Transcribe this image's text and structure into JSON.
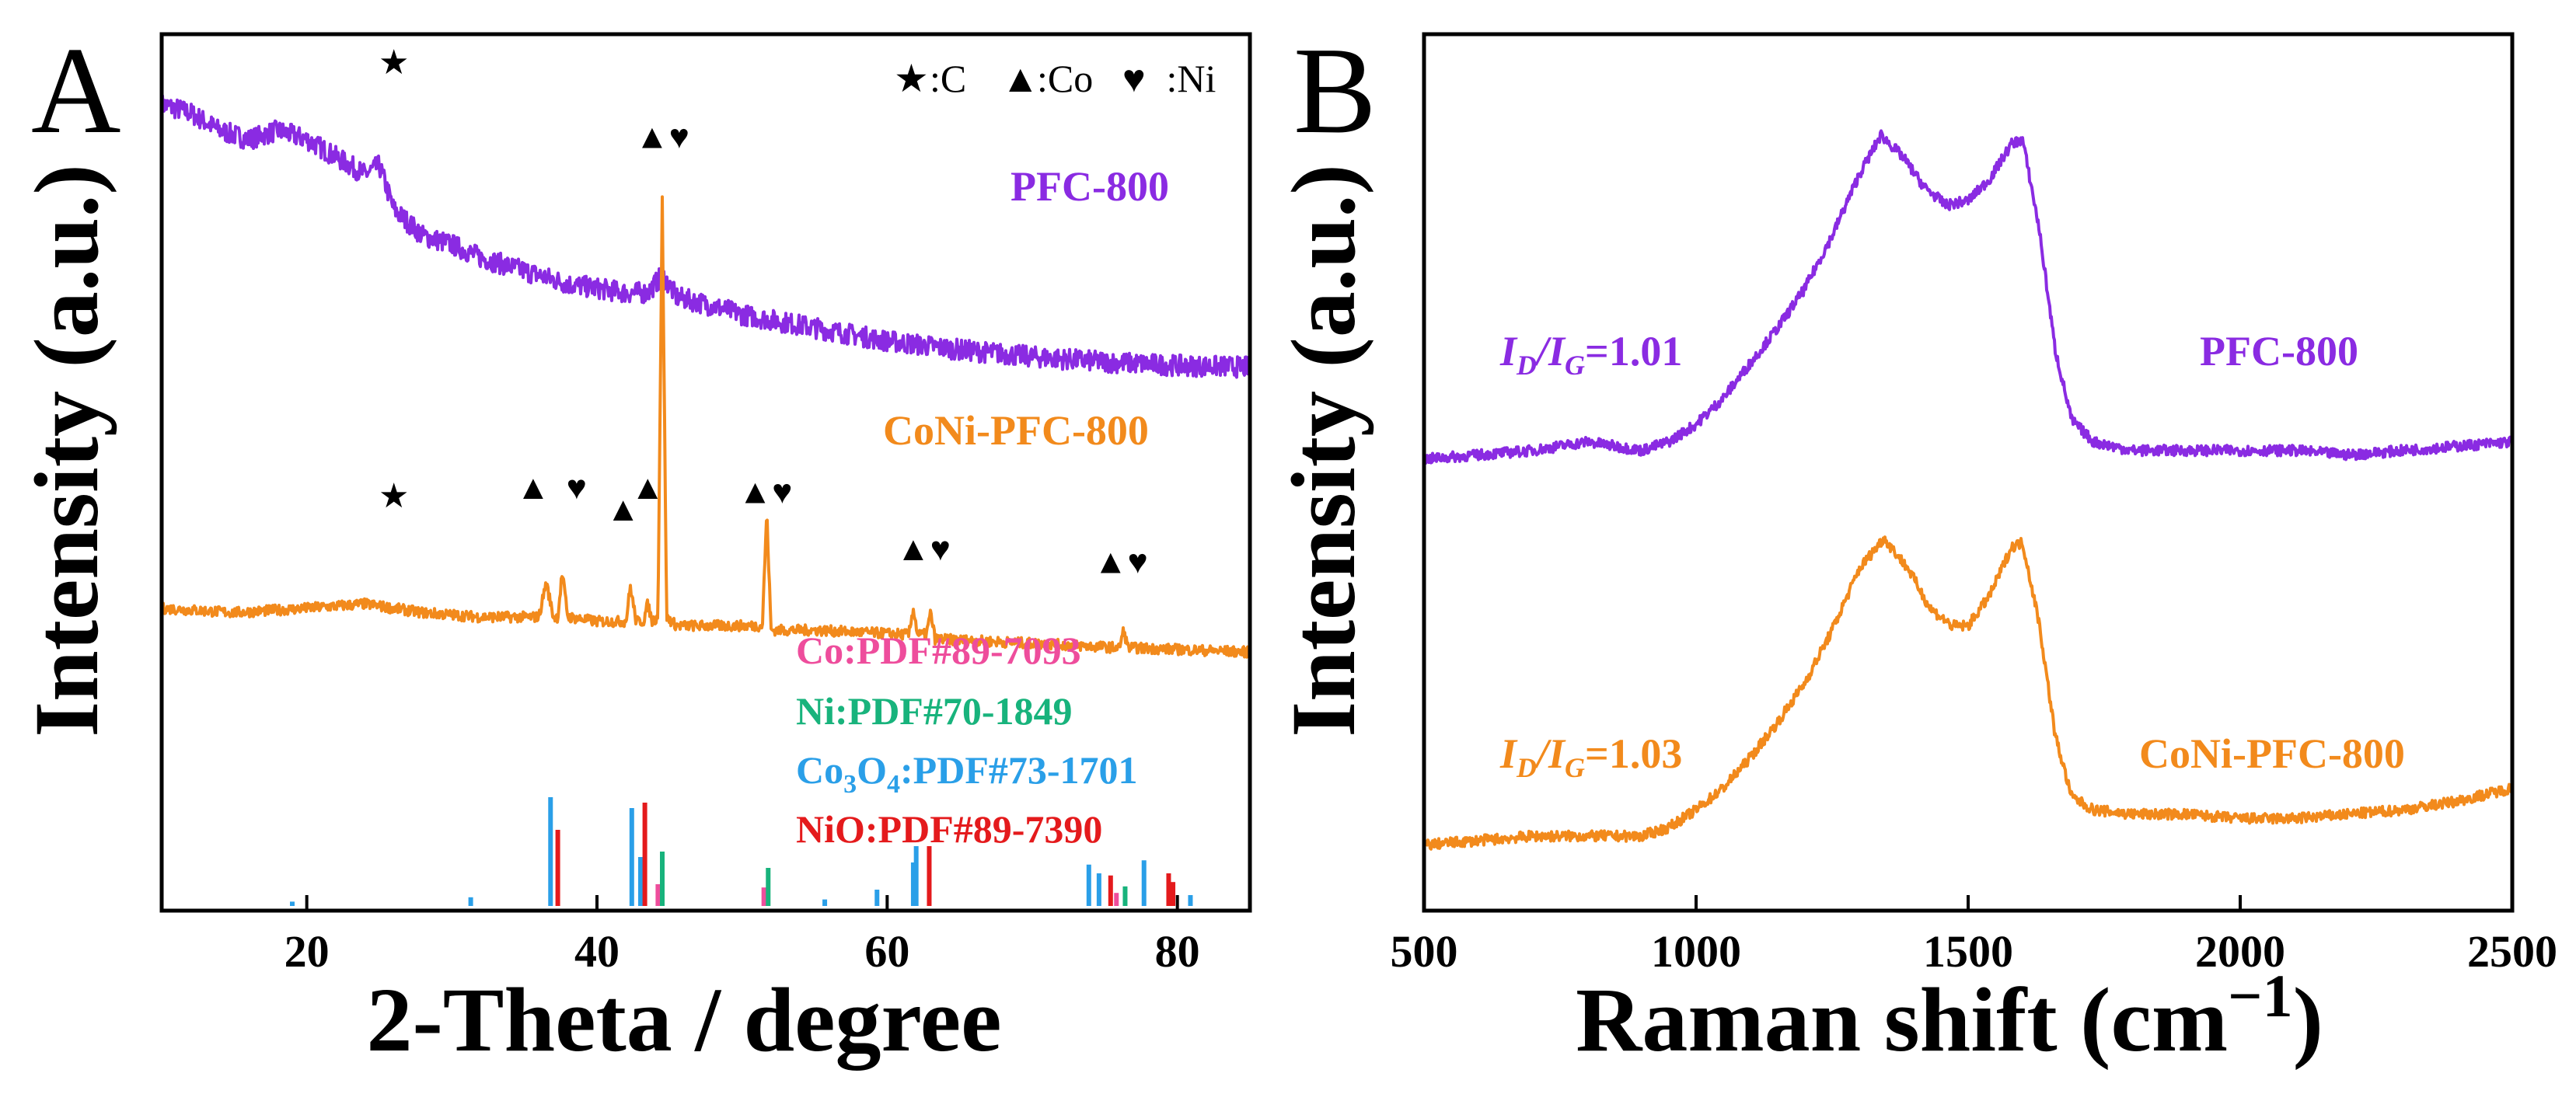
{
  "chart_data": [
    {
      "panel_label": "A",
      "type": "line",
      "xlabel": "2-Theta / degree",
      "ylabel": "Intensity (a.u.)",
      "xlim": [
        10,
        85
      ],
      "xticks": [
        20,
        40,
        60,
        80
      ],
      "yticks_shown": false,
      "marker_legend": [
        {
          "symbol": "★",
          "label": ":C"
        },
        {
          "symbol": "▲",
          "label": ":Co"
        },
        {
          "symbol": "♥",
          "label": " :Ni"
        }
      ],
      "series": [
        {
          "name": "PFC-800",
          "color": "#8a2be2",
          "label_color": "#8a2be2",
          "points": [
            [
              10,
              0.92
            ],
            [
              12,
              0.91
            ],
            [
              14,
              0.89
            ],
            [
              16,
              0.88
            ],
            [
              18,
              0.89
            ],
            [
              20,
              0.88
            ],
            [
              22,
              0.86
            ],
            [
              24,
              0.84
            ],
            [
              25,
              0.85
            ],
            [
              26,
              0.8
            ],
            [
              28,
              0.77
            ],
            [
              30,
              0.76
            ],
            [
              32,
              0.745
            ],
            [
              34,
              0.735
            ],
            [
              36,
              0.725
            ],
            [
              38,
              0.715
            ],
            [
              40,
              0.71
            ],
            [
              42,
              0.705
            ],
            [
              43.5,
              0.705
            ],
            [
              44.5,
              0.725
            ],
            [
              45.5,
              0.7
            ],
            [
              48,
              0.69
            ],
            [
              50,
              0.68
            ],
            [
              55,
              0.665
            ],
            [
              60,
              0.65
            ],
            [
              65,
              0.64
            ],
            [
              70,
              0.632
            ],
            [
              75,
              0.626
            ],
            [
              80,
              0.622
            ],
            [
              85,
              0.62
            ]
          ]
        },
        {
          "name": "CoNi-PFC-800",
          "color": "#f28a1c",
          "label_color": "#f28a1c",
          "points": [
            [
              10,
              0.345
            ],
            [
              15,
              0.34
            ],
            [
              20,
              0.345
            ],
            [
              24,
              0.35
            ],
            [
              28,
              0.34
            ],
            [
              32,
              0.335
            ],
            [
              36,
              0.335
            ],
            [
              36.5,
              0.375
            ],
            [
              37,
              0.335
            ],
            [
              37.3,
              0.335
            ],
            [
              37.6,
              0.385
            ],
            [
              38,
              0.335
            ],
            [
              40,
              0.33
            ],
            [
              42,
              0.33
            ],
            [
              42.3,
              0.37
            ],
            [
              42.7,
              0.33
            ],
            [
              43.2,
              0.33
            ],
            [
              43.5,
              0.35
            ],
            [
              43.8,
              0.33
            ],
            [
              44.2,
              0.335
            ],
            [
              44.5,
              0.81
            ],
            [
              44.8,
              0.335
            ],
            [
              45.5,
              0.325
            ],
            [
              50,
              0.325
            ],
            [
              51.4,
              0.325
            ],
            [
              51.7,
              0.455
            ],
            [
              52,
              0.32
            ],
            [
              55,
              0.32
            ],
            [
              61.5,
              0.315
            ],
            [
              61.8,
              0.345
            ],
            [
              62.1,
              0.315
            ],
            [
              62.7,
              0.315
            ],
            [
              63,
              0.34
            ],
            [
              63.3,
              0.31
            ],
            [
              70,
              0.305
            ],
            [
              76,
              0.3
            ],
            [
              76.3,
              0.32
            ],
            [
              76.6,
              0.3
            ],
            [
              80,
              0.298
            ],
            [
              85,
              0.295
            ]
          ]
        }
      ],
      "reference_patterns": [
        {
          "label": "Co:PDF#89-7093",
          "color": "#ee4d9c",
          "lines": [
            [
              44.2,
              0.2
            ],
            [
              51.5,
              0.17
            ],
            [
              75.8,
              0.12
            ]
          ]
        },
        {
          "label": "Ni:PDF#70-1849",
          "color": "#18b37c",
          "lines": [
            [
              44.5,
              0.5
            ],
            [
              51.8,
              0.35
            ],
            [
              76.4,
              0.18
            ]
          ]
        },
        {
          "label": "Co3O4:PDF#73-1701",
          "label_main": "Co",
          "label_sub": "3",
          "label_rest": "O",
          "label_sub2": "4",
          "label_tail": ":PDF#73-1701",
          "color": "#2a9fe8",
          "lines": [
            [
              19,
              0.04
            ],
            [
              31.3,
              0.08
            ],
            [
              36.8,
              1.0
            ],
            [
              42.4,
              0.9
            ],
            [
              43.0,
              0.45
            ],
            [
              55.7,
              0.06
            ],
            [
              59.3,
              0.15
            ],
            [
              61.8,
              0.4
            ],
            [
              62.0,
              0.55
            ],
            [
              73.9,
              0.38
            ],
            [
              74.6,
              0.3
            ],
            [
              77.7,
              0.42
            ],
            [
              80.9,
              0.1
            ]
          ]
        },
        {
          "label": "NiO:PDF#89-7390",
          "color": "#e41a1c",
          "lines": [
            [
              37.3,
              0.7
            ],
            [
              43.3,
              0.95
            ],
            [
              62.9,
              0.55
            ],
            [
              75.4,
              0.28
            ],
            [
              79.4,
              0.3
            ],
            [
              79.7,
              0.22
            ]
          ]
        }
      ],
      "annotations": [
        {
          "marks": "★",
          "x": 26,
          "y": 0.955
        },
        {
          "marks": "▲♥",
          "x": 44.5,
          "y": 0.87
        },
        {
          "marks": "★",
          "x": 26,
          "y": 0.46
        },
        {
          "marks": "▲",
          "x": 35.6,
          "y": 0.47
        },
        {
          "marks": "♥",
          "x": 38.6,
          "y": 0.47
        },
        {
          "marks": "▲",
          "x": 41.8,
          "y": 0.445
        },
        {
          "marks": "▲",
          "x": 43.5,
          "y": 0.47
        },
        {
          "marks": "▲♥",
          "x": 51.6,
          "y": 0.465
        },
        {
          "marks": "▲♥",
          "x": 62.5,
          "y": 0.4
        },
        {
          "marks": "▲♥",
          "x": 76.1,
          "y": 0.385
        }
      ]
    },
    {
      "panel_label": "B",
      "type": "line",
      "xlabel": "Raman shift (cm⁻¹)",
      "xlabel_main": "Raman shift (cm",
      "xlabel_sup": "−1",
      "xlabel_tail": ")",
      "ylabel": "Intensity (a.u.)",
      "xlim": [
        500,
        2500
      ],
      "xticks": [
        500,
        1000,
        1500,
        2000,
        2500
      ],
      "yticks_shown": false,
      "series": [
        {
          "name": "PFC-800",
          "color": "#8a2be2",
          "ratio_label": "ID/IG=1.01",
          "ratio_value": "=1.01",
          "points": [
            [
              500,
              0.515
            ],
            [
              600,
              0.52
            ],
            [
              700,
              0.525
            ],
            [
              800,
              0.535
            ],
            [
              900,
              0.525
            ],
            [
              950,
              0.535
            ],
            [
              1000,
              0.555
            ],
            [
              1050,
              0.585
            ],
            [
              1100,
              0.625
            ],
            [
              1150,
              0.665
            ],
            [
              1200,
              0.71
            ],
            [
              1250,
              0.77
            ],
            [
              1300,
              0.84
            ],
            [
              1340,
              0.885
            ],
            [
              1380,
              0.86
            ],
            [
              1420,
              0.825
            ],
            [
              1460,
              0.805
            ],
            [
              1500,
              0.81
            ],
            [
              1540,
              0.835
            ],
            [
              1580,
              0.875
            ],
            [
              1600,
              0.88
            ],
            [
              1630,
              0.78
            ],
            [
              1660,
              0.64
            ],
            [
              1690,
              0.56
            ],
            [
              1730,
              0.535
            ],
            [
              1800,
              0.525
            ],
            [
              1900,
              0.525
            ],
            [
              2000,
              0.525
            ],
            [
              2100,
              0.525
            ],
            [
              2200,
              0.52
            ],
            [
              2300,
              0.525
            ],
            [
              2400,
              0.53
            ],
            [
              2500,
              0.535
            ]
          ]
        },
        {
          "name": "CoNi-PFC-800",
          "color": "#f28a1c",
          "ratio_label": "ID/IG=1.03",
          "ratio_value": "=1.03",
          "points": [
            [
              500,
              0.075
            ],
            [
              600,
              0.08
            ],
            [
              700,
              0.085
            ],
            [
              800,
              0.085
            ],
            [
              900,
              0.085
            ],
            [
              950,
              0.095
            ],
            [
              1000,
              0.115
            ],
            [
              1050,
              0.14
            ],
            [
              1100,
              0.175
            ],
            [
              1150,
              0.215
            ],
            [
              1200,
              0.26
            ],
            [
              1250,
              0.32
            ],
            [
              1300,
              0.39
            ],
            [
              1345,
              0.425
            ],
            [
              1390,
              0.39
            ],
            [
              1430,
              0.345
            ],
            [
              1470,
              0.325
            ],
            [
              1500,
              0.325
            ],
            [
              1540,
              0.36
            ],
            [
              1580,
              0.415
            ],
            [
              1600,
              0.42
            ],
            [
              1630,
              0.33
            ],
            [
              1660,
              0.2
            ],
            [
              1690,
              0.13
            ],
            [
              1730,
              0.115
            ],
            [
              1800,
              0.11
            ],
            [
              1900,
              0.11
            ],
            [
              2000,
              0.105
            ],
            [
              2100,
              0.105
            ],
            [
              2200,
              0.11
            ],
            [
              2300,
              0.115
            ],
            [
              2400,
              0.125
            ],
            [
              2500,
              0.14
            ]
          ]
        }
      ]
    }
  ]
}
